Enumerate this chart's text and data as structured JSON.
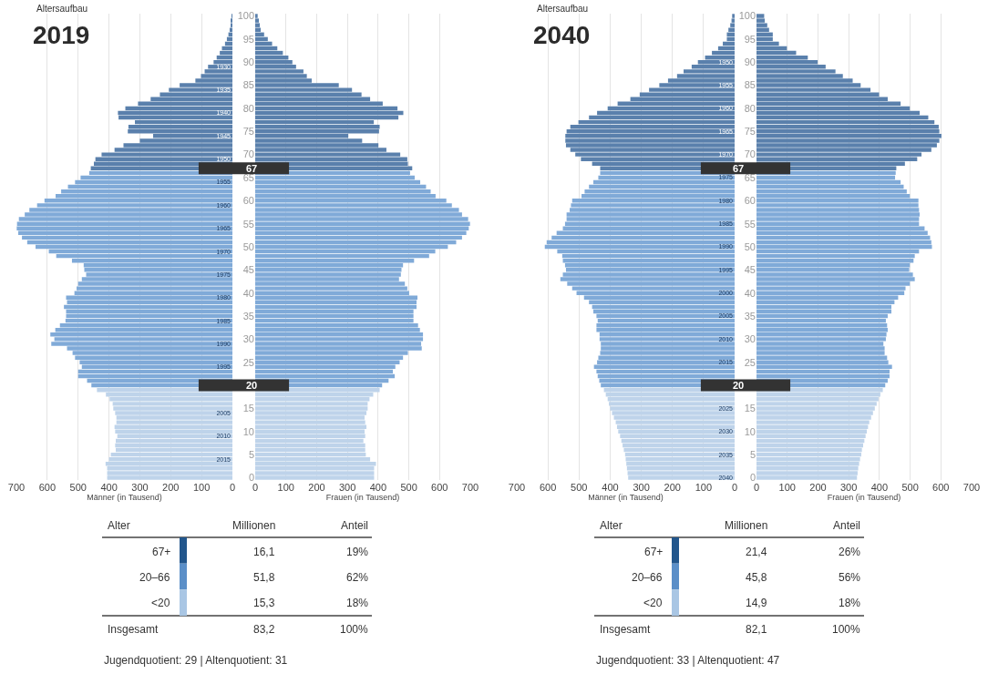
{
  "chart_data": [
    {
      "type": "bar",
      "orientation": "horizontal",
      "title": "2019",
      "subtitle": "Altersaufbau",
      "xlabel": "Männer (in Tausend)",
      "xlim": [
        700,
        0
      ],
      "xticks": [
        700,
        600,
        500,
        400,
        300,
        200,
        100,
        0
      ],
      "ylim": [
        2019.5,
        1918.5
      ],
      "grid": "x",
      "yticks": [
        1930,
        1935,
        1940,
        1945,
        1950,
        1955,
        1960,
        1965,
        1970,
        1975,
        1980,
        1985,
        1990,
        1995,
        2005,
        2010,
        2015
      ],
      "series": [
        {
          "color": "#5a80ac",
          "x": [
            1919,
            1920,
            1921,
            1922,
            1923,
            1924,
            1925,
            1926,
            1927,
            1928,
            1929,
            1930,
            1931,
            1932,
            1933,
            1934,
            1935,
            1936,
            1937,
            1938,
            1939,
            1940,
            1941,
            1942,
            1943,
            1944,
            1945,
            1946,
            1947,
            1948,
            1949,
            1950,
            1951,
            1952
          ],
          "values": [
            2,
            4,
            6,
            9,
            13,
            18,
            24,
            34,
            41,
            51,
            61,
            79,
            90,
            102,
            120,
            171,
            206,
            235,
            265,
            306,
            347,
            371,
            369,
            316,
            337,
            339,
            257,
            300,
            353,
            382,
            424,
            444,
            449,
            459
          ]
        },
        {
          "color": "#80aad8",
          "x": [
            1953,
            1954,
            1955,
            1956,
            1957,
            1958,
            1959,
            1960,
            1961,
            1962,
            1963,
            1964,
            1965,
            1966,
            1967,
            1968,
            1969,
            1970,
            1971,
            1972,
            1973,
            1974,
            1975,
            1976,
            1977,
            1978,
            1979,
            1980,
            1981,
            1982,
            1983,
            1984,
            1985,
            1986,
            1987,
            1988,
            1989,
            1990,
            1991,
            1992,
            1993,
            1994,
            1995,
            1996,
            1997,
            1998,
            1999
          ],
          "values": [
            464,
            492,
            510,
            533,
            555,
            573,
            609,
            633,
            658,
            673,
            692,
            698,
            699,
            694,
            682,
            665,
            638,
            595,
            571,
            520,
            482,
            480,
            474,
            488,
            500,
            505,
            512,
            539,
            536,
            546,
            539,
            539,
            541,
            559,
            574,
            590,
            577,
            587,
            536,
            518,
            510,
            495,
            488,
            500,
            500,
            471,
            457
          ]
        },
        {
          "color": "#bed3ea",
          "x": [
            2000,
            2001,
            2002,
            2003,
            2004,
            2005,
            2006,
            2007,
            2008,
            2009,
            2010,
            2011,
            2012,
            2013,
            2014,
            2015,
            2016,
            2017,
            2018,
            2019
          ],
          "values": [
            439,
            410,
            398,
            388,
            386,
            380,
            376,
            376,
            382,
            380,
            373,
            378,
            380,
            378,
            394,
            400,
            411,
            406,
            406,
            406
          ]
        }
      ]
    },
    {
      "type": "bar",
      "orientation": "horizontal",
      "xlabel": "Frauen (in Tausend)",
      "xlim": [
        0,
        700
      ],
      "xticks": [
        0,
        100,
        200,
        300,
        400,
        500,
        600,
        700
      ],
      "ylim": [
        -0.5,
        100.5
      ],
      "yticks": [
        0,
        5,
        10,
        15,
        25,
        30,
        35,
        40,
        45,
        50,
        55,
        60,
        65,
        70,
        75,
        80,
        85,
        90,
        95,
        100
      ],
      "grid": "x",
      "ref_lines": [
        {
          "axis": "y",
          "value": 67,
          "label": "67",
          "color": "#333333"
        },
        {
          "axis": "y",
          "value": 20,
          "label": "20",
          "color": "#333333"
        }
      ],
      "series": [
        {
          "color": "#5a80ac",
          "x": [
            100,
            99,
            98,
            97,
            96,
            95,
            94,
            93,
            92,
            91,
            90,
            89,
            88,
            87,
            86,
            85,
            84,
            83,
            82,
            81,
            80,
            79,
            78,
            77,
            76,
            75,
            74,
            73,
            72,
            71,
            70,
            69,
            68,
            67
          ],
          "values": [
            8,
            12,
            15,
            18,
            29,
            41,
            55,
            72,
            90,
            108,
            121,
            133,
            157,
            168,
            184,
            272,
            315,
            346,
            374,
            415,
            463,
            482,
            466,
            386,
            405,
            403,
            303,
            348,
            401,
            427,
            472,
            495,
            497,
            511
          ]
        },
        {
          "color": "#80aad8",
          "x": [
            66,
            65,
            64,
            63,
            62,
            61,
            60,
            59,
            58,
            57,
            56,
            55,
            54,
            53,
            52,
            51,
            50,
            49,
            48,
            47,
            46,
            45,
            44,
            43,
            42,
            41,
            40,
            39,
            38,
            37,
            36,
            35,
            34,
            33,
            32,
            31,
            30,
            29,
            28,
            27,
            26,
            25,
            24,
            23,
            22,
            21,
            20
          ],
          "values": [
            504,
            519,
            537,
            556,
            571,
            587,
            622,
            640,
            663,
            673,
            693,
            699,
            695,
            687,
            673,
            654,
            627,
            586,
            566,
            517,
            481,
            476,
            474,
            468,
            487,
            495,
            501,
            528,
            525,
            525,
            515,
            515,
            515,
            530,
            536,
            546,
            546,
            540,
            542,
            497,
            481,
            470,
            456,
            448,
            454,
            434,
            413
          ]
        },
        {
          "color": "#bed3ea",
          "x": [
            19,
            18,
            17,
            16,
            15,
            14,
            13,
            12,
            11,
            10,
            9,
            8,
            7,
            6,
            5,
            4,
            3,
            2,
            1,
            0
          ],
          "values": [
            405,
            384,
            372,
            366,
            366,
            362,
            356,
            358,
            362,
            356,
            358,
            352,
            358,
            358,
            360,
            374,
            393,
            387,
            387,
            387
          ]
        }
      ]
    },
    {
      "type": "other",
      "colors": [
        "#22568c",
        "#5b8fc8",
        "#a9c6e4"
      ],
      "annotations": [
        "Alter",
        "Millionen",
        "Anteil",
        "67+",
        "16,1",
        "19%",
        "20–66",
        "51,8",
        "62%",
        "<20",
        "15,3",
        "18%",
        "Insgesamt",
        "83,2",
        "100%",
        "Jugendquotient: 29 | Altenquotient: 31"
      ]
    },
    {
      "type": "bar",
      "orientation": "horizontal",
      "title": "2040",
      "subtitle": "Altersaufbau",
      "xlabel": "Männer (in Tausend)",
      "xlim": [
        700,
        0
      ],
      "xticks": [
        700,
        600,
        500,
        400,
        300,
        200,
        100,
        0
      ],
      "ylim": [
        2040.5,
        1939.5
      ],
      "grid": "x",
      "yticks": [
        1950,
        1955,
        1960,
        1965,
        1970,
        1975,
        1980,
        1985,
        1990,
        1995,
        2000,
        2005,
        2010,
        2015,
        2025,
        2030,
        2035,
        2040
      ],
      "series": [
        {
          "color": "#5a80ac",
          "x": [
            1940,
            1941,
            1942,
            1943,
            1944,
            1945,
            1946,
            1947,
            1948,
            1949,
            1950,
            1951,
            1952,
            1953,
            1954,
            1955,
            1956,
            1957,
            1958,
            1959,
            1960,
            1961,
            1962,
            1963,
            1964,
            1965,
            1966,
            1967,
            1968,
            1969,
            1970,
            1971,
            1972,
            1973
          ],
          "values": [
            8,
            10,
            14,
            20,
            25,
            25,
            38,
            53,
            73,
            95,
            118,
            138,
            164,
            185,
            214,
            242,
            275,
            305,
            335,
            376,
            408,
            442,
            468,
            502,
            528,
            540,
            544,
            544,
            542,
            528,
            512,
            494,
            458,
            432
          ]
        },
        {
          "color": "#80aad8",
          "x": [
            1974,
            1975,
            1976,
            1977,
            1978,
            1979,
            1980,
            1981,
            1982,
            1983,
            1984,
            1985,
            1986,
            1987,
            1988,
            1989,
            1990,
            1991,
            1992,
            1993,
            1994,
            1995,
            1996,
            1997,
            1998,
            1999,
            2000,
            2001,
            2002,
            2003,
            2004,
            2005,
            2006,
            2007,
            2008,
            2009,
            2010,
            2011,
            2012,
            2013,
            2014,
            2015,
            2016,
            2017,
            2018,
            2019,
            2020
          ],
          "values": [
            432,
            438,
            454,
            468,
            482,
            492,
            522,
            526,
            530,
            540,
            540,
            545,
            552,
            572,
            588,
            604,
            610,
            570,
            554,
            552,
            545,
            542,
            552,
            560,
            538,
            522,
            508,
            484,
            468,
            458,
            454,
            444,
            440,
            444,
            444,
            434,
            434,
            430,
            430,
            432,
            438,
            442,
            452,
            444,
            440,
            435,
            430
          ]
        },
        {
          "color": "#bed3ea",
          "x": [
            2021,
            2022,
            2023,
            2024,
            2025,
            2026,
            2027,
            2028,
            2029,
            2030,
            2031,
            2032,
            2033,
            2034,
            2035,
            2036,
            2037,
            2038,
            2039,
            2040
          ],
          "values": [
            420,
            414,
            408,
            404,
            400,
            394,
            388,
            382,
            378,
            374,
            368,
            364,
            360,
            356,
            352,
            350,
            348,
            346,
            344,
            342
          ]
        }
      ]
    },
    {
      "type": "bar",
      "orientation": "horizontal",
      "xlabel": "Frauen (in Tausend)",
      "xlim": [
        0,
        700
      ],
      "xticks": [
        0,
        100,
        200,
        300,
        400,
        500,
        600,
        700
      ],
      "ylim": [
        -0.5,
        100.5
      ],
      "yticks": [
        0,
        5,
        10,
        15,
        25,
        30,
        35,
        40,
        45,
        50,
        55,
        60,
        65,
        70,
        75,
        80,
        85,
        90,
        95,
        100
      ],
      "grid": "x",
      "ref_lines": [
        {
          "axis": "y",
          "value": 67,
          "label": "67",
          "color": "#333333"
        },
        {
          "axis": "y",
          "value": 20,
          "label": "20",
          "color": "#333333"
        }
      ],
      "series": [
        {
          "color": "#5a80ac",
          "x": [
            100,
            99,
            98,
            97,
            96,
            95,
            94,
            93,
            92,
            91,
            90,
            89,
            88,
            87,
            86,
            85,
            84,
            83,
            82,
            81,
            80,
            79,
            78,
            77,
            76,
            75,
            74,
            73,
            72,
            71,
            70,
            69,
            68,
            67
          ],
          "values": [
            25,
            27,
            35,
            41,
            53,
            53,
            73,
            99,
            129,
            167,
            199,
            225,
            257,
            281,
            313,
            339,
            371,
            399,
            427,
            469,
            499,
            531,
            559,
            579,
            593,
            595,
            602,
            595,
            587,
            569,
            537,
            523,
            483,
            455
          ]
        },
        {
          "color": "#80aad8",
          "x": [
            66,
            65,
            64,
            63,
            62,
            61,
            60,
            59,
            58,
            57,
            56,
            55,
            54,
            53,
            52,
            51,
            50,
            49,
            48,
            47,
            46,
            45,
            44,
            43,
            42,
            41,
            40,
            39,
            38,
            37,
            36,
            35,
            34,
            33,
            32,
            31,
            30,
            29,
            28,
            27,
            26,
            25,
            24,
            23,
            22,
            21,
            20
          ],
          "values": [
            453,
            451,
            469,
            479,
            489,
            499,
            527,
            527,
            529,
            531,
            529,
            529,
            547,
            557,
            565,
            569,
            571,
            529,
            515,
            511,
            499,
            497,
            509,
            515,
            499,
            485,
            481,
            461,
            449,
            439,
            439,
            427,
            421,
            425,
            427,
            423,
            421,
            413,
            417,
            417,
            425,
            429,
            441,
            433,
            433,
            427,
            419
          ]
        },
        {
          "color": "#bed3ea",
          "x": [
            19,
            18,
            17,
            16,
            15,
            14,
            13,
            12,
            11,
            10,
            9,
            8,
            7,
            6,
            5,
            4,
            3,
            2,
            1,
            0
          ],
          "values": [
            411,
            403,
            397,
            391,
            385,
            379,
            373,
            367,
            363,
            359,
            355,
            351,
            347,
            343,
            341,
            337,
            334,
            331,
            329,
            327
          ]
        }
      ]
    },
    {
      "type": "other",
      "colors": [
        "#22568c",
        "#5b8fc8",
        "#a9c6e4"
      ],
      "annotations": [
        "Alter",
        "Millionen",
        "Anteil",
        "67+",
        "21,4",
        "26%",
        "20–66",
        "45,8",
        "56%",
        "<20",
        "14,9",
        "18%",
        "Insgesamt",
        "82,1",
        "100%",
        "Jugendquotient: 33 | Altenquotient: 47"
      ]
    }
  ]
}
